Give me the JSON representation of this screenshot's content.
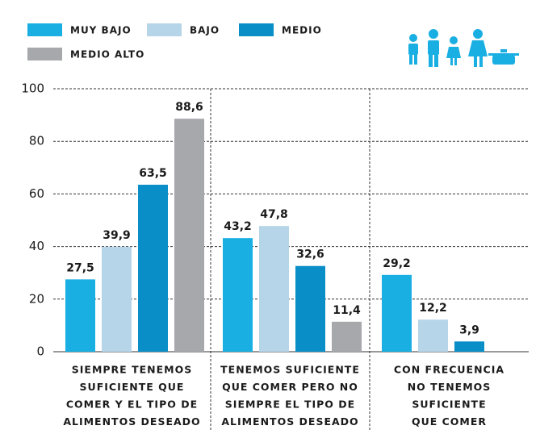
{
  "chart_data": {
    "type": "bar",
    "categories": [
      [
        "SIEMPRE TENEMOS",
        "SUFICIENTE QUE",
        "COMER Y EL TIPO DE",
        "ALIMENTOS DESEADO"
      ],
      [
        "TENEMOS SUFICIENTE",
        "QUE COMER PERO NO",
        "SIEMPRE EL TIPO DE",
        "ALIMENTOS DESEADO"
      ],
      [
        "CON FRECUENCIA",
        "NO TENEMOS",
        "SUFICIENTE",
        "QUE COMER"
      ]
    ],
    "series": [
      {
        "name": "MUY BAJO",
        "color": "#1aafe3",
        "values": [
          27.5,
          43.2,
          29.2
        ],
        "value_labels": [
          "27,5",
          "43,2",
          "29,2"
        ]
      },
      {
        "name": "BAJO",
        "color": "#b6d5e8",
        "values": [
          39.9,
          47.8,
          12.2
        ],
        "value_labels": [
          "39,9",
          "47,8",
          "12,2"
        ]
      },
      {
        "name": "MEDIO",
        "color": "#0a8ec8",
        "values": [
          63.5,
          32.6,
          3.9
        ],
        "value_labels": [
          "63,5",
          "32,6",
          "3,9"
        ]
      },
      {
        "name": "MEDIO ALTO",
        "color": "#a6a8ab",
        "values": [
          88.6,
          11.4,
          null
        ],
        "value_labels": [
          "88,6",
          "11,4",
          null
        ]
      }
    ],
    "ylim": [
      0,
      100
    ],
    "yticks": [
      0,
      20,
      40,
      60,
      80,
      100
    ],
    "grid": true
  }
}
